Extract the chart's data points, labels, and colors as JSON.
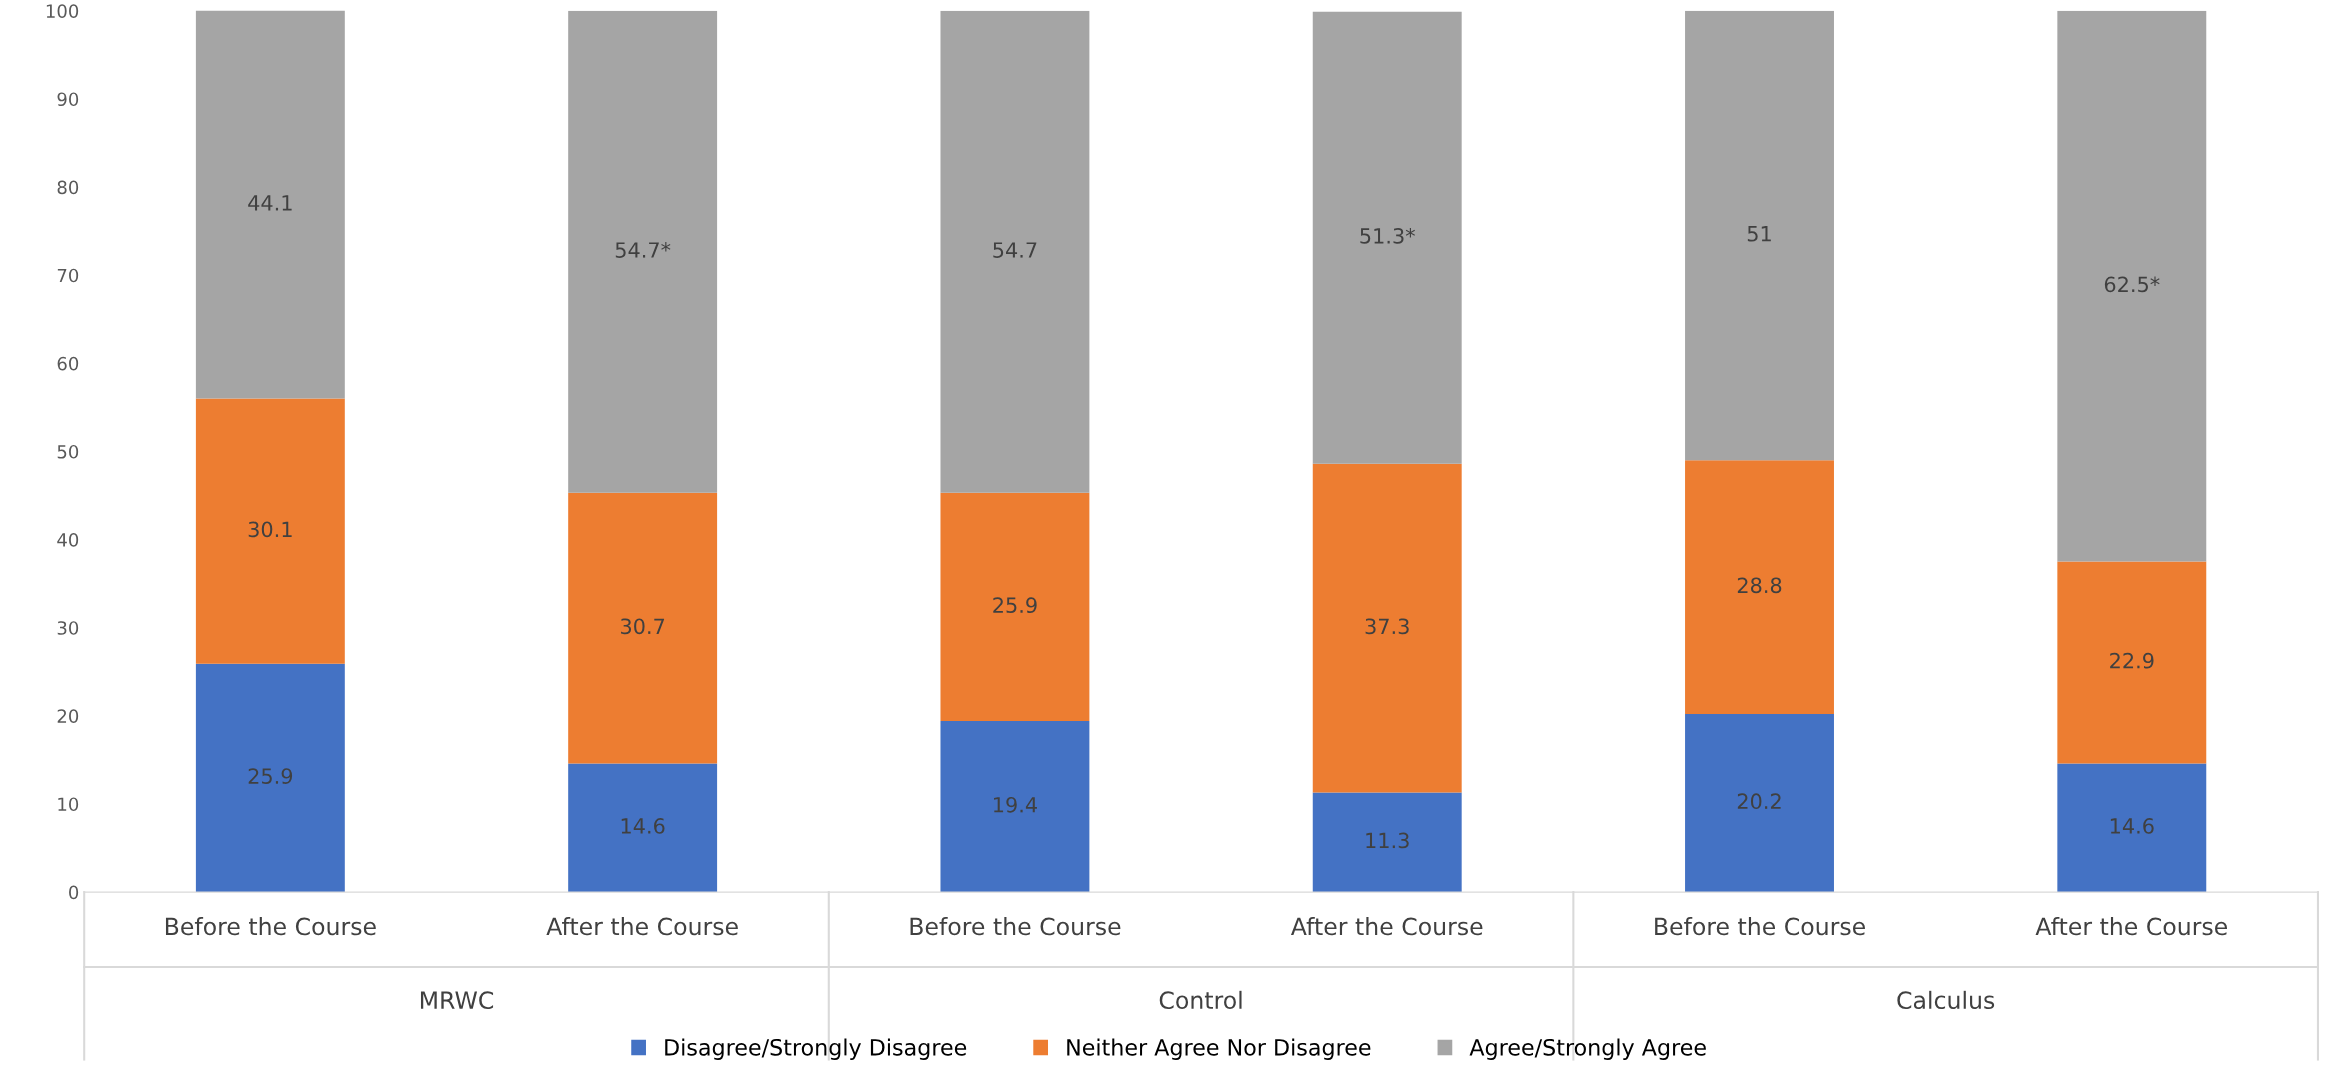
{
  "chart_data": {
    "type": "bar",
    "stacked": true,
    "categories": [
      "Before the Course",
      "After the Course",
      "Before the Course",
      "After the Course",
      "Before the Course",
      "After the Course"
    ],
    "series": [
      {
        "name": "Disagree/Strongly Disagree",
        "color": "#4472c4",
        "values": [
          25.9,
          14.6,
          19.4,
          11.3,
          20.2,
          14.6
        ],
        "value_labels": [
          "25.9",
          "14.6",
          "19.4",
          "11.3",
          "20.2",
          "14.6"
        ]
      },
      {
        "name": "Neither Agree Nor Disagree",
        "color": "#ed7d31",
        "values": [
          30.1,
          30.7,
          25.9,
          37.3,
          28.8,
          22.9
        ],
        "value_labels": [
          "30.1",
          "30.7",
          "25.9",
          "37.3",
          "28.8",
          "22.9"
        ]
      },
      {
        "name": "Agree/Strongly Agree",
        "color": "#a5a5a5",
        "values": [
          44.1,
          54.7,
          54.7,
          51.3,
          51,
          62.5
        ],
        "value_labels": [
          "44.1",
          "54.7*",
          "54.7",
          "51.3*",
          "51",
          "62.5*"
        ]
      }
    ],
    "annotations": [
      "MRWC",
      "Control",
      "Calculus"
    ],
    "ylim": [
      0,
      100
    ],
    "yticks": [
      0,
      10,
      20,
      30,
      40,
      50,
      60,
      70,
      80,
      90,
      100
    ],
    "legend": "bottom",
    "grid": false
  }
}
